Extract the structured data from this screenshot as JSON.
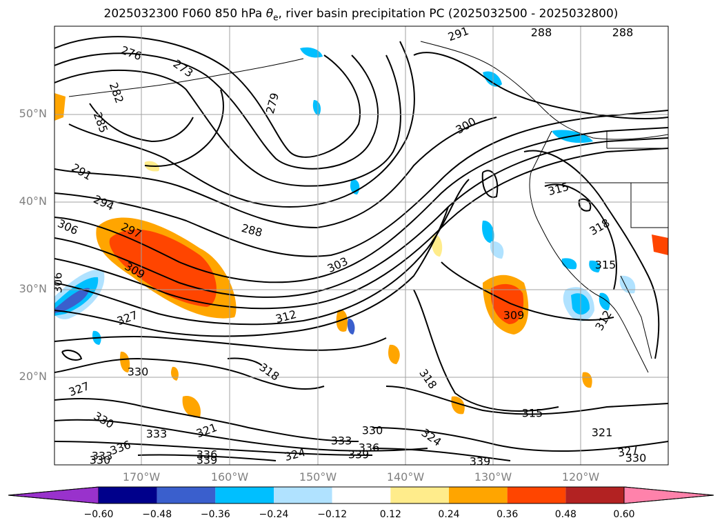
{
  "title": {
    "prefix": "2025032300 F060 850 hPa ",
    "theta": "θ",
    "theta_sub": "e",
    "suffix": ", river basin precipitation PC (2025032500 - 2025032800)"
  },
  "lat_labels": [
    "50°N",
    "40°N",
    "30°N",
    "20°N"
  ],
  "lon_labels": [
    "170°W",
    "160°W",
    "150°W",
    "140°W",
    "130°W",
    "120°W"
  ],
  "colorbar": {
    "ticks": [
      "−0.60",
      "−0.48",
      "−0.36",
      "−0.24",
      "−0.12",
      "0.12",
      "0.24",
      "0.36",
      "0.48",
      "0.60"
    ],
    "colors": [
      "#9932cc",
      "#00008b",
      "#3a5fcd",
      "#00bfff",
      "#b0e2ff",
      "#ffffff",
      "#ffec8b",
      "#ffa500",
      "#ff4500",
      "#b22222",
      "#ff82ab"
    ]
  },
  "contour_labels": [
    "276",
    "273",
    "282",
    "285",
    "279",
    "291",
    "288",
    "288",
    "291",
    "294",
    "306",
    "297",
    "309",
    "288",
    "300",
    "303",
    "306",
    "327",
    "312",
    "315",
    "318",
    "315",
    "309",
    "312",
    "330",
    "318",
    "318",
    "327",
    "330",
    "333",
    "321",
    "315",
    "330",
    "324",
    "333",
    "336",
    "321",
    "336",
    "339",
    "324",
    "333",
    "336",
    "339",
    "339",
    "327",
    "330",
    "330"
  ]
}
